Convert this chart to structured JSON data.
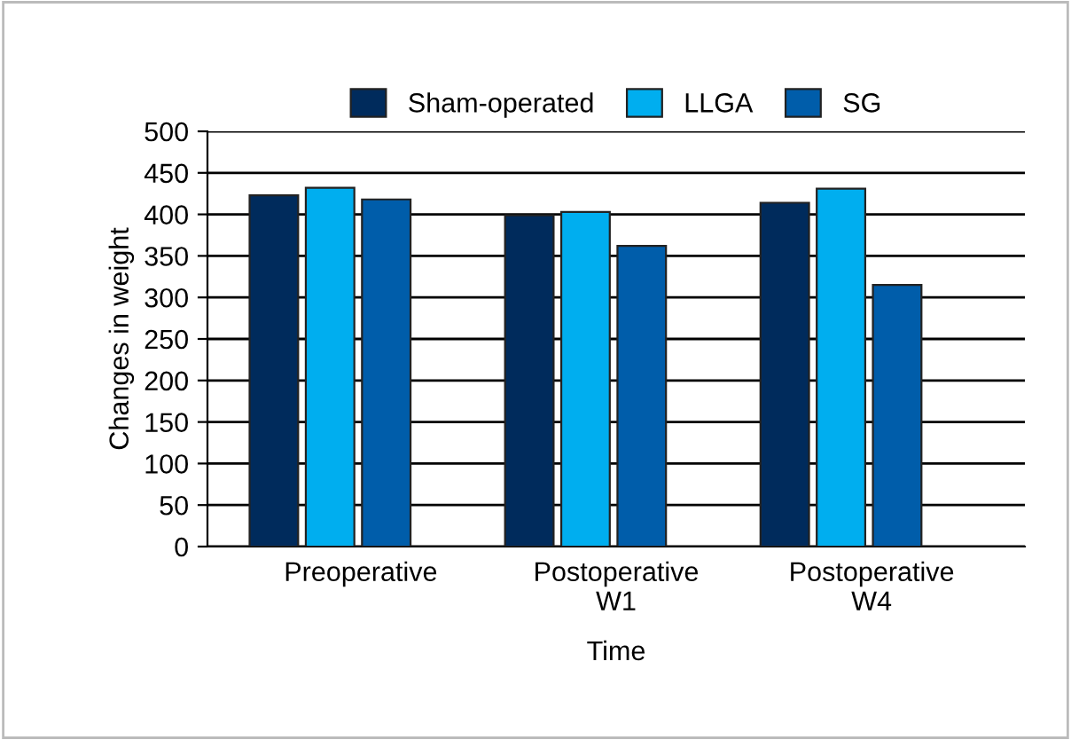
{
  "chart_data": {
    "type": "bar",
    "xlabel": "Time",
    "ylabel": "Changes in weight",
    "categories": [
      "Preoperative",
      "Postoperative\nW1",
      "Postoperative\nW4"
    ],
    "series": [
      {
        "name": "Sham-operated",
        "color": "#002b5c",
        "values": [
          423,
          399,
          414
        ]
      },
      {
        "name": "LLGA",
        "color": "#00aeef",
        "values": [
          432,
          403,
          431
        ]
      },
      {
        "name": "SG",
        "color": "#005daa",
        "values": [
          418,
          362,
          315
        ]
      }
    ],
    "ylim": [
      0,
      500
    ],
    "yticks": [
      0,
      50,
      100,
      150,
      200,
      250,
      300,
      350,
      400,
      450,
      500
    ],
    "grid": "y",
    "legend": "top"
  }
}
